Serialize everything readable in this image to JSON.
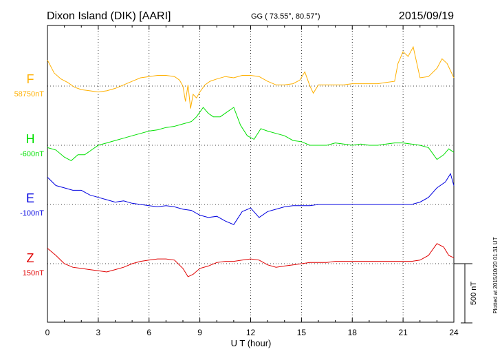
{
  "header": {
    "station": "Dixon Island (DIK)  [AARI]",
    "coords": "GG ( 73.55°,  80.57°)",
    "date": "2015/09/19"
  },
  "side_note": "Plotted at 2015/10/20 01:31  UT",
  "colors": {
    "F": "#ffb000",
    "H": "#00e000",
    "E": "#0000e0",
    "Z": "#e00000"
  },
  "chart_data": {
    "type": "line",
    "title": "Dixon Island (DIK)  [AARI]",
    "xlabel": "U T (hour)",
    "xlim": [
      0,
      24
    ],
    "xticks": [
      0,
      3,
      6,
      9,
      12,
      15,
      18,
      21,
      24
    ],
    "scale_bar": {
      "label": "500 nT",
      "value": 500
    },
    "grid": true,
    "series": [
      {
        "name": "F",
        "baseline_label": "58750nT",
        "baseline": 58750,
        "points": [
          [
            0,
            58970
          ],
          [
            0.4,
            58860
          ],
          [
            0.8,
            58810
          ],
          [
            1.2,
            58780
          ],
          [
            1.6,
            58740
          ],
          [
            2,
            58720
          ],
          [
            2.5,
            58710
          ],
          [
            3,
            58700
          ],
          [
            3.5,
            58710
          ],
          [
            4,
            58730
          ],
          [
            4.5,
            58760
          ],
          [
            5,
            58790
          ],
          [
            5.5,
            58820
          ],
          [
            6,
            58830
          ],
          [
            6.5,
            58840
          ],
          [
            7,
            58840
          ],
          [
            7.5,
            58830
          ],
          [
            7.8,
            58800
          ],
          [
            8,
            58750
          ],
          [
            8.15,
            58620
          ],
          [
            8.3,
            58760
          ],
          [
            8.45,
            58560
          ],
          [
            8.6,
            58680
          ],
          [
            8.8,
            58650
          ],
          [
            9,
            58700
          ],
          [
            9.3,
            58760
          ],
          [
            9.6,
            58790
          ],
          [
            10,
            58810
          ],
          [
            10.5,
            58830
          ],
          [
            11,
            58820
          ],
          [
            11.5,
            58840
          ],
          [
            12,
            58840
          ],
          [
            12.5,
            58830
          ],
          [
            13,
            58790
          ],
          [
            13.5,
            58760
          ],
          [
            14,
            58760
          ],
          [
            14.5,
            58770
          ],
          [
            14.9,
            58800
          ],
          [
            15.2,
            58870
          ],
          [
            15.5,
            58750
          ],
          [
            15.7,
            58690
          ],
          [
            16,
            58760
          ],
          [
            16.5,
            58760
          ],
          [
            17,
            58760
          ],
          [
            17.5,
            58760
          ],
          [
            18,
            58770
          ],
          [
            18.5,
            58770
          ],
          [
            19,
            58770
          ],
          [
            19.5,
            58770
          ],
          [
            20,
            58780
          ],
          [
            20.5,
            58790
          ],
          [
            20.7,
            58940
          ],
          [
            21,
            59040
          ],
          [
            21.3,
            59000
          ],
          [
            21.6,
            59080
          ],
          [
            22,
            58820
          ],
          [
            22.5,
            58830
          ],
          [
            23,
            58900
          ],
          [
            23.3,
            58980
          ],
          [
            23.6,
            58940
          ],
          [
            24,
            58820
          ]
        ]
      },
      {
        "name": "H",
        "baseline_label": "-600nT",
        "baseline": -600,
        "points": [
          [
            0,
            -620
          ],
          [
            0.5,
            -640
          ],
          [
            1,
            -700
          ],
          [
            1.4,
            -730
          ],
          [
            1.8,
            -680
          ],
          [
            2.2,
            -680
          ],
          [
            2.6,
            -640
          ],
          [
            3,
            -600
          ],
          [
            3.5,
            -580
          ],
          [
            4,
            -560
          ],
          [
            4.5,
            -540
          ],
          [
            5,
            -520
          ],
          [
            5.5,
            -500
          ],
          [
            6,
            -480
          ],
          [
            6.5,
            -470
          ],
          [
            7,
            -450
          ],
          [
            7.5,
            -440
          ],
          [
            8,
            -420
          ],
          [
            8.5,
            -400
          ],
          [
            8.8,
            -360
          ],
          [
            9.2,
            -280
          ],
          [
            9.5,
            -330
          ],
          [
            9.8,
            -360
          ],
          [
            10.2,
            -360
          ],
          [
            10.6,
            -320
          ],
          [
            11,
            -280
          ],
          [
            11.4,
            -430
          ],
          [
            11.8,
            -520
          ],
          [
            12.2,
            -550
          ],
          [
            12.6,
            -460
          ],
          [
            13,
            -480
          ],
          [
            13.5,
            -500
          ],
          [
            14,
            -520
          ],
          [
            14.5,
            -560
          ],
          [
            15,
            -570
          ],
          [
            15.5,
            -600
          ],
          [
            16,
            -600
          ],
          [
            16.5,
            -600
          ],
          [
            17,
            -580
          ],
          [
            17.5,
            -590
          ],
          [
            18,
            -600
          ],
          [
            18.5,
            -590
          ],
          [
            19,
            -600
          ],
          [
            19.5,
            -600
          ],
          [
            20,
            -590
          ],
          [
            20.5,
            -580
          ],
          [
            21,
            -580
          ],
          [
            21.5,
            -590
          ],
          [
            22,
            -600
          ],
          [
            22.5,
            -620
          ],
          [
            23,
            -720
          ],
          [
            23.4,
            -680
          ],
          [
            23.7,
            -630
          ],
          [
            24,
            -660
          ]
        ]
      },
      {
        "name": "E",
        "baseline_label": "-100nT",
        "baseline": -100,
        "points": [
          [
            0,
            130
          ],
          [
            0.5,
            60
          ],
          [
            1,
            40
          ],
          [
            1.5,
            20
          ],
          [
            2,
            20
          ],
          [
            2.5,
            -20
          ],
          [
            3,
            -40
          ],
          [
            3.5,
            -60
          ],
          [
            4,
            -80
          ],
          [
            4.5,
            -70
          ],
          [
            5,
            -90
          ],
          [
            5.5,
            -100
          ],
          [
            6,
            -110
          ],
          [
            6.5,
            -120
          ],
          [
            7,
            -110
          ],
          [
            7.5,
            -120
          ],
          [
            8,
            -140
          ],
          [
            8.5,
            -150
          ],
          [
            9,
            -190
          ],
          [
            9.5,
            -210
          ],
          [
            10,
            -200
          ],
          [
            10.5,
            -240
          ],
          [
            11,
            -270
          ],
          [
            11.5,
            -160
          ],
          [
            12,
            -130
          ],
          [
            12.5,
            -210
          ],
          [
            13,
            -160
          ],
          [
            13.5,
            -140
          ],
          [
            14,
            -120
          ],
          [
            14.5,
            -110
          ],
          [
            15,
            -110
          ],
          [
            15.5,
            -110
          ],
          [
            16,
            -100
          ],
          [
            16.5,
            -100
          ],
          [
            17,
            -100
          ],
          [
            17.5,
            -100
          ],
          [
            18,
            -100
          ],
          [
            18.5,
            -100
          ],
          [
            19,
            -100
          ],
          [
            19.5,
            -100
          ],
          [
            20,
            -100
          ],
          [
            20.5,
            -100
          ],
          [
            21,
            -100
          ],
          [
            21.5,
            -100
          ],
          [
            22,
            -80
          ],
          [
            22.5,
            -40
          ],
          [
            23,
            40
          ],
          [
            23.5,
            90
          ],
          [
            23.8,
            160
          ],
          [
            24,
            60
          ]
        ]
      },
      {
        "name": "Z",
        "baseline_label": "150nT",
        "baseline": 150,
        "points": [
          [
            0,
            280
          ],
          [
            0.5,
            220
          ],
          [
            1,
            150
          ],
          [
            1.5,
            120
          ],
          [
            2,
            110
          ],
          [
            2.5,
            100
          ],
          [
            3,
            90
          ],
          [
            3.5,
            80
          ],
          [
            4,
            100
          ],
          [
            4.5,
            120
          ],
          [
            5,
            150
          ],
          [
            5.5,
            170
          ],
          [
            6,
            180
          ],
          [
            6.5,
            190
          ],
          [
            7,
            190
          ],
          [
            7.5,
            180
          ],
          [
            8,
            110
          ],
          [
            8.3,
            40
          ],
          [
            8.6,
            60
          ],
          [
            9,
            110
          ],
          [
            9.5,
            130
          ],
          [
            10,
            160
          ],
          [
            10.5,
            170
          ],
          [
            11,
            170
          ],
          [
            11.5,
            180
          ],
          [
            12,
            190
          ],
          [
            12.5,
            180
          ],
          [
            13,
            140
          ],
          [
            13.5,
            120
          ],
          [
            14,
            130
          ],
          [
            14.5,
            140
          ],
          [
            15,
            150
          ],
          [
            15.5,
            160
          ],
          [
            16,
            160
          ],
          [
            16.5,
            160
          ],
          [
            17,
            170
          ],
          [
            17.5,
            170
          ],
          [
            18,
            170
          ],
          [
            18.5,
            170
          ],
          [
            19,
            170
          ],
          [
            19.5,
            170
          ],
          [
            20,
            170
          ],
          [
            20.5,
            170
          ],
          [
            21,
            170
          ],
          [
            21.5,
            170
          ],
          [
            22,
            180
          ],
          [
            22.5,
            220
          ],
          [
            23,
            320
          ],
          [
            23.4,
            290
          ],
          [
            23.7,
            220
          ],
          [
            24,
            200
          ]
        ]
      }
    ]
  }
}
